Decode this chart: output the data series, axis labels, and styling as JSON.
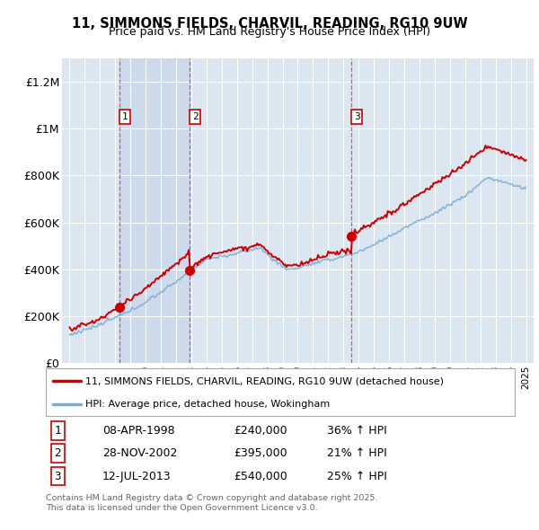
{
  "title": "11, SIMMONS FIELDS, CHARVIL, READING, RG10 9UW",
  "subtitle": "Price paid vs. HM Land Registry's House Price Index (HPI)",
  "legend_line1": "11, SIMMONS FIELDS, CHARVIL, READING, RG10 9UW (detached house)",
  "legend_line2": "HPI: Average price, detached house, Wokingham",
  "sales": [
    {
      "num": 1,
      "date": "08-APR-1998",
      "price": 240000,
      "year": 1998.27,
      "hpi_pct": "36% ↑ HPI"
    },
    {
      "num": 2,
      "date": "28-NOV-2002",
      "price": 395000,
      "year": 2002.91,
      "hpi_pct": "21% ↑ HPI"
    },
    {
      "num": 3,
      "date": "12-JUL-2013",
      "price": 540000,
      "year": 2013.53,
      "hpi_pct": "25% ↑ HPI"
    }
  ],
  "footer1": "Contains HM Land Registry data © Crown copyright and database right 2025.",
  "footer2": "This data is licensed under the Open Government Licence v3.0.",
  "red_color": "#cc0000",
  "blue_color": "#7aadd4",
  "bg_color": "#dce6f1",
  "shade_color": "#c8d8eb",
  "plot_bg": "#ffffff",
  "ylim": [
    0,
    1300000
  ],
  "xlim_start": 1994.5,
  "xlim_end": 2025.5
}
